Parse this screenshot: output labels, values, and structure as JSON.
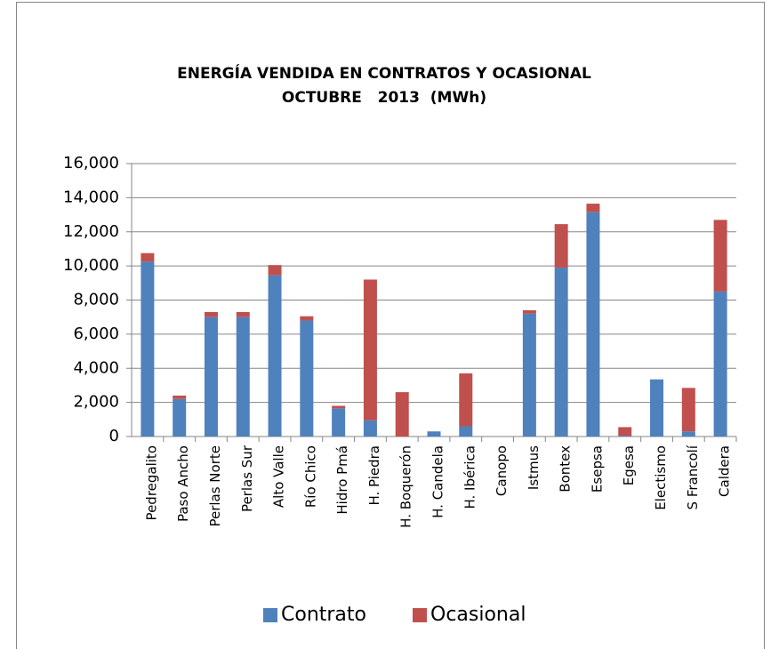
{
  "chart_data": {
    "type": "stacked_bar",
    "title": [
      "ENERGÍA VENDIDA EN CONTRATOS Y OCASIONAL",
      "OCTUBRE   2013  (MWh)"
    ],
    "categories": [
      "Pedregalito",
      "Paso Ancho",
      "Perlas Norte",
      "Perlas Sur",
      "Alto Valle",
      "Río Chico",
      "Hidro Pmá",
      "H. Piedra",
      "H. Boquerón",
      "H. Candela",
      "H. Ibérica",
      "Canopo",
      "Istmus",
      "Bontex",
      "Esepsa",
      "Egesa",
      "Electismo",
      "S Francolí",
      "Caldera"
    ],
    "series": [
      {
        "name": "Contrato",
        "color": "#4f81bd",
        "values": [
          10250,
          2200,
          7000,
          7000,
          9450,
          6800,
          1650,
          950,
          0,
          300,
          600,
          0,
          7200,
          9900,
          13150,
          50,
          3350,
          300,
          8500
        ]
      },
      {
        "name": "Ocasional",
        "color": "#c0504d",
        "values": [
          500,
          200,
          300,
          300,
          600,
          250,
          150,
          8250,
          2600,
          0,
          3100,
          0,
          200,
          2550,
          500,
          500,
          0,
          2550,
          4200
        ]
      }
    ],
    "ylim": [
      0,
      16000
    ],
    "yticks": [
      0,
      {
        "value": 2000,
        "label": "2,000"
      },
      {
        "value": 4000,
        "label": "4,000"
      },
      {
        "value": 6000,
        "label": "6,000"
      },
      {
        "value": 8000,
        "label": "8,000"
      },
      {
        "value": 10000,
        "label": "10,000"
      },
      {
        "value": 12000,
        "label": "12,000"
      },
      {
        "value": 14000,
        "label": "14,000"
      },
      {
        "value": 16000,
        "label": "16,000"
      }
    ],
    "grid": true,
    "legend": "bottom"
  }
}
